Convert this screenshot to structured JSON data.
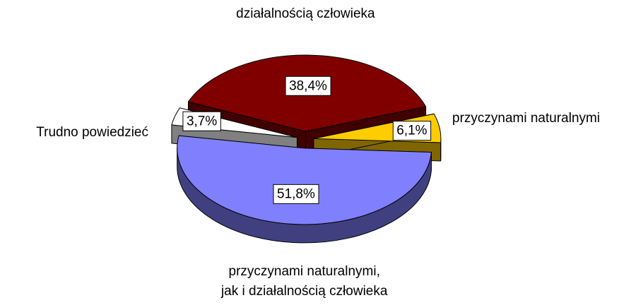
{
  "chart_data": {
    "type": "pie",
    "categories": [
      "przyczynami naturalnymi",
      "działalnością człowieka",
      "Trudno powiedzieć",
      "przyczynami naturalnymi,\njak i działalnością człowieka"
    ],
    "values": [
      6.1,
      38.4,
      3.7,
      51.8
    ],
    "value_labels": [
      "6,1%",
      "38,4%",
      "3,7%",
      "51,8%"
    ],
    "colors": [
      "#ffcc00",
      "#800000",
      "#ffffff",
      "#8080ff"
    ]
  }
}
